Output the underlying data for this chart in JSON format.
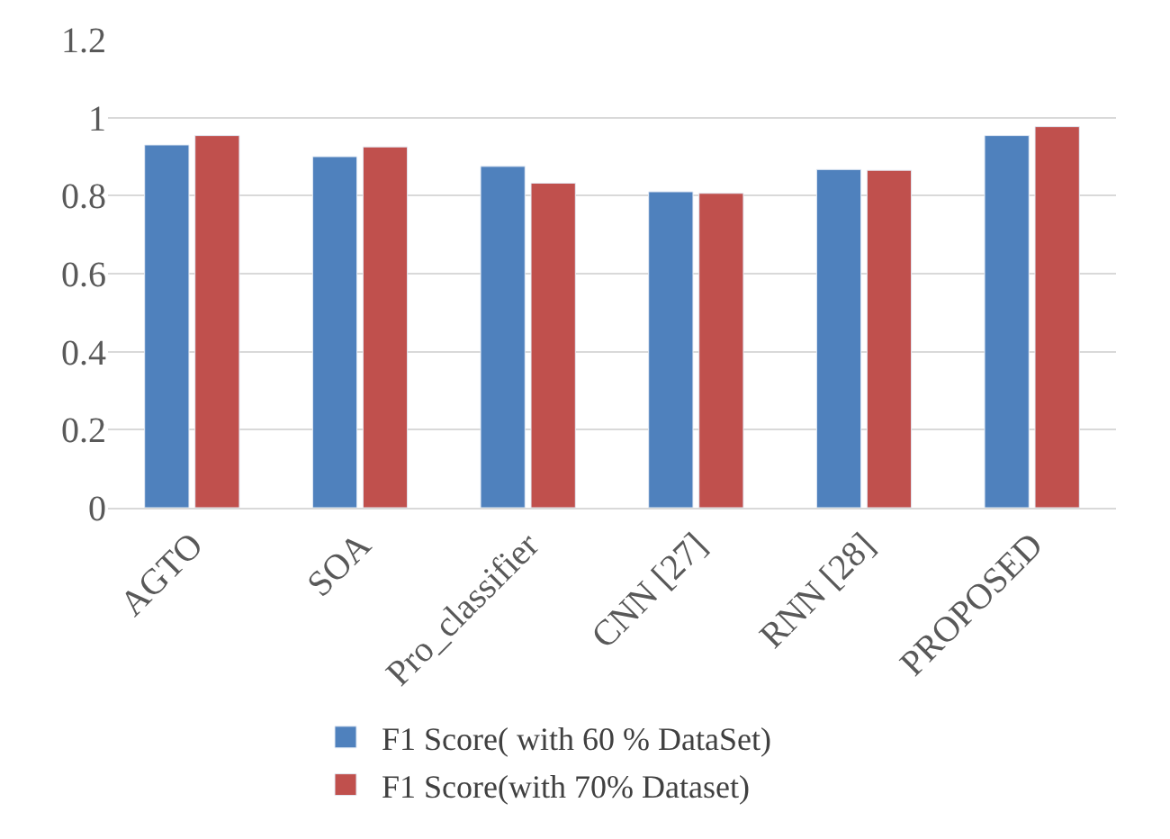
{
  "chart_data": {
    "type": "bar",
    "categories": [
      "AGTO",
      "SOA",
      "Pro_classifier",
      "CNN [27]",
      "RNN [28]",
      "PROPOSED"
    ],
    "series": [
      {
        "name": "F1 Score( with 60 % DataSet)",
        "color": "#4f81bd",
        "values": [
          0.93,
          0.9,
          0.875,
          0.81,
          0.867,
          0.954
        ]
      },
      {
        "name": "F1 Score(with 70% Dataset)",
        "color": "#c0504d",
        "values": [
          0.954,
          0.925,
          0.832,
          0.806,
          0.865,
          0.977
        ]
      }
    ],
    "ylim": [
      0,
      1.2
    ],
    "yticks": [
      0,
      0.2,
      0.4,
      0.6,
      0.8,
      1,
      1.2
    ],
    "grid": "y",
    "legend": "bottom"
  }
}
